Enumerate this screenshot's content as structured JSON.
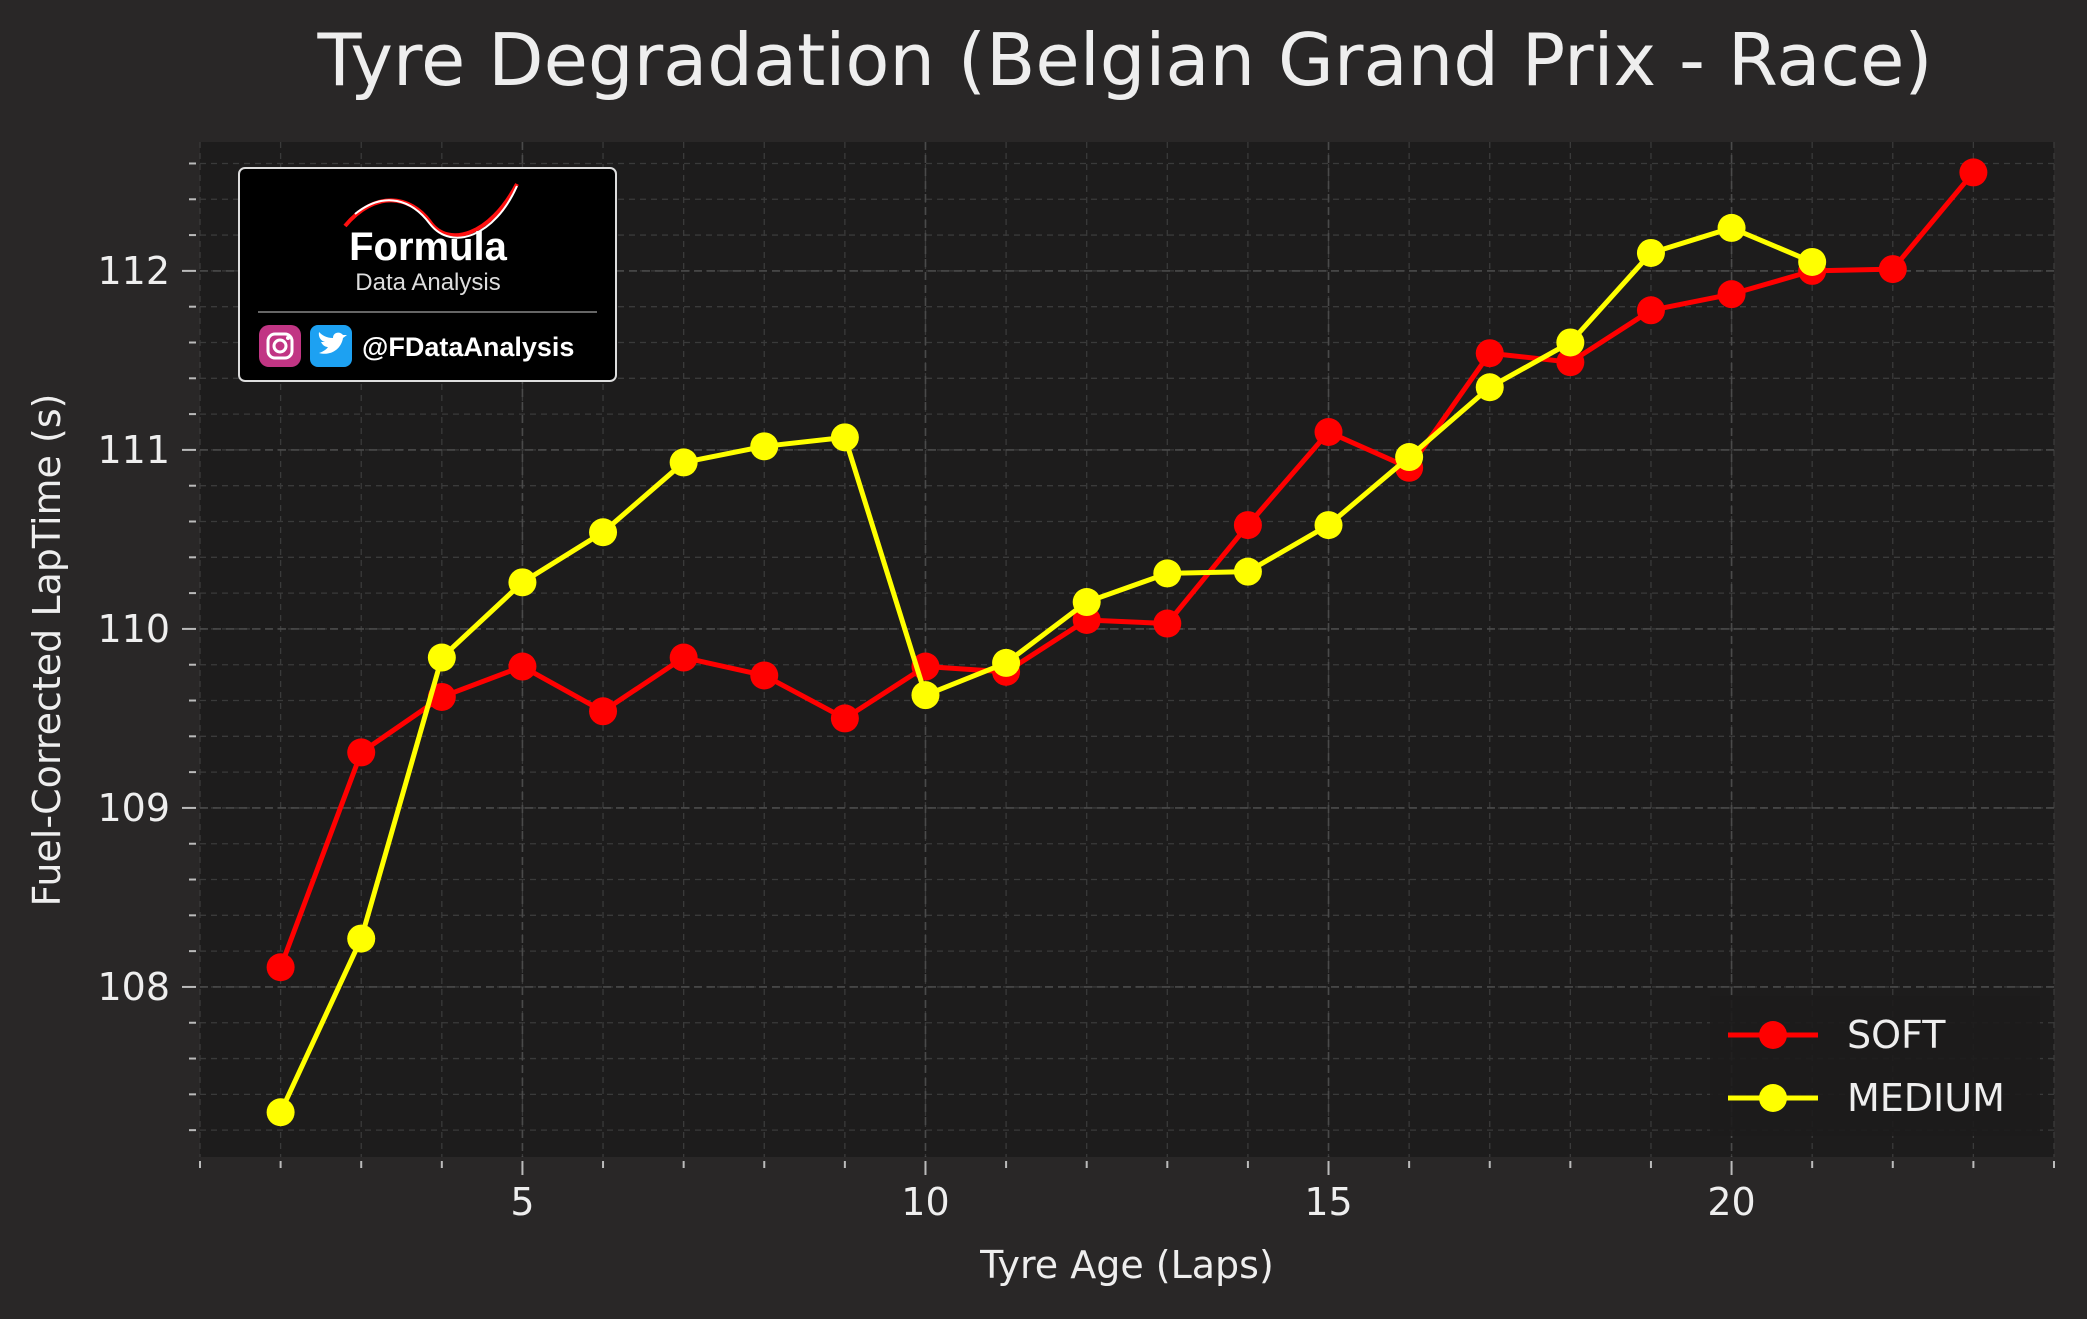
{
  "chart_data": {
    "type": "line",
    "title": "Tyre Degradation (Belgian Grand Prix - Race)",
    "xlabel": "Tyre Age (Laps)",
    "ylabel": "Fuel-Corrected LapTime (s)",
    "xlim": [
      1,
      24
    ],
    "ylim": [
      107.05,
      112.72
    ],
    "x_ticks": [
      5,
      10,
      15,
      20
    ],
    "y_ticks": [
      108,
      109,
      110,
      111,
      112
    ],
    "grid": true,
    "legend_position": "bottom-right",
    "series": [
      {
        "name": "SOFT",
        "color": "#ff0000",
        "x": [
          2,
          3,
          4,
          5,
          6,
          7,
          8,
          9,
          10,
          11,
          12,
          13,
          14,
          15,
          16,
          17,
          18,
          19,
          20,
          21,
          22,
          23
        ],
        "y": [
          108.11,
          109.31,
          109.62,
          109.79,
          109.54,
          109.84,
          109.74,
          109.5,
          109.79,
          109.76,
          110.05,
          110.03,
          110.58,
          111.1,
          110.9,
          111.54,
          111.49,
          111.78,
          111.87,
          112.0,
          112.01,
          112.55
        ]
      },
      {
        "name": "MEDIUM",
        "color": "#ffff00",
        "x": [
          2,
          3,
          4,
          5,
          6,
          7,
          8,
          9,
          10,
          11,
          12,
          13,
          14,
          15,
          16,
          17,
          18,
          19,
          20,
          21
        ],
        "y": [
          107.3,
          108.27,
          109.84,
          110.26,
          110.54,
          110.93,
          111.02,
          111.07,
          109.63,
          109.81,
          110.15,
          110.31,
          110.32,
          110.58,
          110.96,
          111.35,
          111.6,
          112.1,
          112.24,
          112.05
        ]
      }
    ]
  },
  "logo": {
    "brand": "Formula",
    "subtitle": "Data Analysis",
    "handle": "@FDataAnalysis",
    "instagram_icon": "instagram-icon",
    "twitter_icon": "twitter-icon"
  }
}
